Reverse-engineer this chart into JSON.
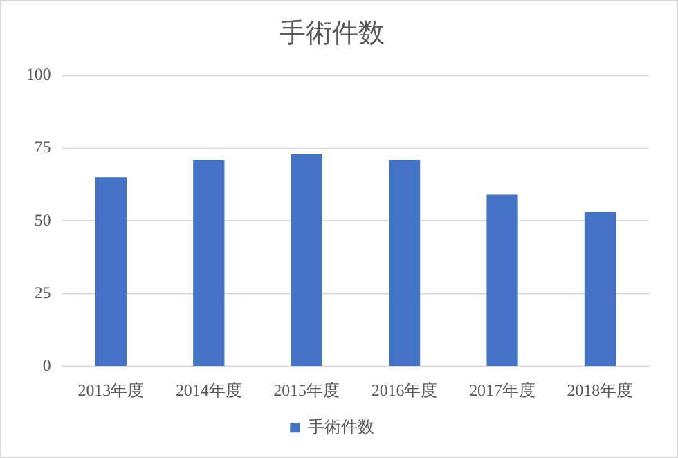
{
  "chart_data": {
    "type": "bar",
    "title": "手術件数",
    "categories": [
      "2013年度",
      "2014年度",
      "2015年度",
      "2016年度",
      "2017年度",
      "2018年度"
    ],
    "series": [
      {
        "name": "手術件数",
        "color": "#4472c4",
        "values": [
          65,
          71,
          73,
          71,
          59,
          53
        ]
      }
    ],
    "ylim": [
      0,
      100
    ],
    "yticks": [
      0,
      25,
      50,
      75,
      100
    ],
    "grid": "y",
    "legend": "bottom"
  }
}
